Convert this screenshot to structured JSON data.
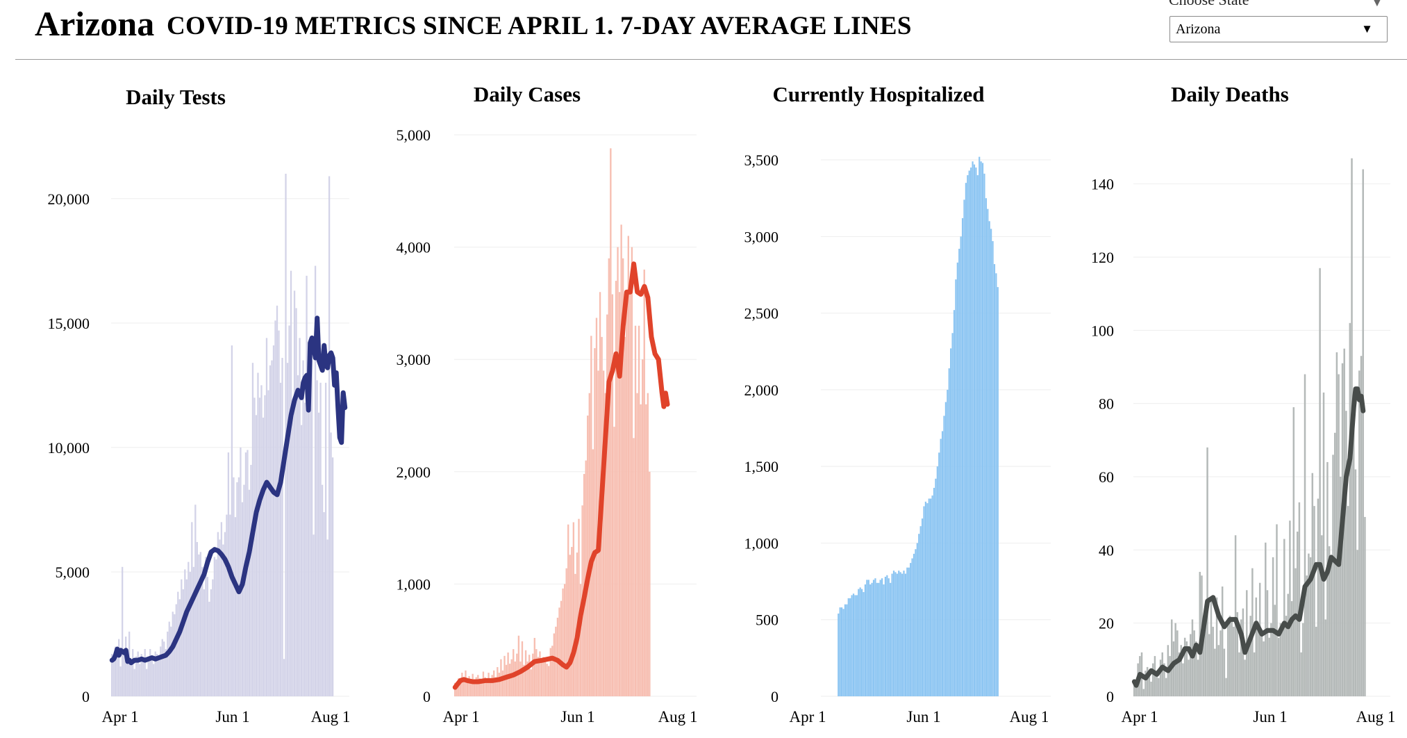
{
  "header": {
    "state": "Arizona",
    "subtitle": "COVID-19 METRICS SINCE APRIL 1. 7-DAY AVERAGE LINES",
    "picker_label": "Choose State",
    "picker_value": "Arizona",
    "picker_caret": "▼",
    "picker_label_caret": "▼"
  },
  "chart_data": [
    {
      "type": "bar",
      "title": "Daily Tests",
      "xlabel": "",
      "ylabel": "",
      "x_tick_labels": [
        "Apr 1",
        "Jun 1",
        "Aug 1"
      ],
      "x_tick_days": [
        0,
        61,
        122
      ],
      "ylim": [
        0,
        21000
      ],
      "y_ticks": [
        0,
        5000,
        10000,
        15000,
        20000
      ],
      "y_tick_labels": [
        "0",
        "5,000",
        "10,000",
        "15,000",
        "20,000"
      ],
      "bar_color": "#d3d3e8",
      "line_color": "#2b3481",
      "bar_series": {
        "name": "Daily tests",
        "start_day": 0,
        "values": [
          1700,
          1500,
          2000,
          1600,
          2300,
          1200,
          5200,
          1800,
          2400,
          1500,
          2600,
          1400,
          1900,
          1100,
          1600,
          1800,
          1300,
          1700,
          1400,
          1900,
          1100,
          1600,
          1900,
          1500,
          1300,
          1800,
          1700,
          1500,
          2000,
          2300,
          2200,
          1900,
          2600,
          3000,
          2800,
          3400,
          3300,
          3700,
          4200,
          3900,
          4700,
          4300,
          5100,
          4700,
          5400,
          5000,
          7000,
          5200,
          7700,
          6200,
          5700,
          5800,
          5200,
          4300,
          5600,
          4800,
          3800,
          4300,
          4700,
          5600,
          5500,
          6600,
          6300,
          7000,
          6100,
          6600,
          7300,
          9800,
          7300,
          14100,
          8800,
          7200,
          8600,
          8800,
          10000,
          7800,
          8500,
          9800,
          9900,
          8300,
          9300,
          13400,
          12000,
          11300,
          13000,
          12000,
          12500,
          11200,
          12100,
          14400,
          12300,
          13300,
          13500,
          14100,
          15100,
          15700,
          14700,
          12600,
          13600,
          1500,
          21000,
          13400,
          14900,
          17100,
          11500,
          16300,
          15600,
          12900,
          14400,
          10900,
          13500,
          11800,
          16900,
          12600,
          11600,
          13500,
          6500,
          17300,
          12700,
          11400,
          12600,
          8500,
          7400,
          12600,
          6300,
          20900,
          10600,
          9600
        ]
      },
      "line_series": {
        "name": "7-day average",
        "start_day": 0,
        "values": [
          1450,
          1500,
          1650,
          1900,
          1650,
          1850,
          1800,
          1750,
          1850,
          1400,
          1450,
          1350,
          1450,
          1450,
          1500,
          1450,
          1500,
          1550,
          1500,
          1550,
          1600,
          1650,
          1800,
          2000,
          2300,
          2600,
          3000,
          3400,
          3700,
          4000,
          4300,
          4600,
          4900,
          5400,
          5800,
          5900,
          5850,
          5700,
          5500,
          5200,
          4800,
          4500,
          4200,
          4500,
          5200,
          5800,
          6600,
          7400,
          7900,
          8300,
          8600,
          8400,
          8200,
          8100,
          8600,
          9500,
          10400,
          11300,
          11900,
          12300,
          12000,
          12600,
          12800,
          12900,
          11500,
          14200,
          14400,
          14000,
          13600,
          15200,
          13500,
          13300,
          13100,
          14100,
          13300,
          13200,
          13700,
          13800,
          13600,
          12500,
          13000,
          11600,
          10400,
          10200,
          12200,
          11600
        ]
      },
      "line_days": [
        0,
        1,
        2,
        3,
        4,
        5,
        6,
        7,
        8,
        9,
        10,
        11,
        13,
        15,
        17,
        19,
        21,
        23,
        25,
        27,
        29,
        31,
        33,
        35,
        37,
        39,
        41,
        43,
        45,
        47,
        49,
        51,
        53,
        55,
        57,
        59,
        61,
        63,
        65,
        67,
        69,
        71,
        73,
        75,
        77,
        79,
        81,
        83,
        85,
        87,
        89,
        91,
        93,
        95,
        97,
        99,
        101,
        103,
        105,
        107,
        109,
        110,
        111,
        112,
        113,
        114,
        115,
        116,
        117,
        118,
        119,
        120,
        121,
        122,
        123,
        124,
        125,
        126,
        127,
        128,
        129,
        130,
        131,
        132,
        133,
        134
      ]
    },
    {
      "type": "bar",
      "title": "Daily Cases",
      "xlabel": "",
      "ylabel": "",
      "x_tick_labels": [
        "Apr 1",
        "Jun 1",
        "Aug 1"
      ],
      "x_tick_days": [
        0,
        61,
        122
      ],
      "ylim": [
        0,
        5000
      ],
      "y_ticks": [
        0,
        1000,
        2000,
        3000,
        4000,
        5000
      ],
      "y_tick_labels": [
        "0",
        "1,000",
        "2,000",
        "3,000",
        "4,000",
        "5,000"
      ],
      "bar_color": "#f7beb1",
      "line_color": "#e0432a",
      "bar_series": {
        "name": "Daily cases",
        "start_day": 0,
        "values": [
          120,
          90,
          160,
          150,
          210,
          170,
          230,
          120,
          180,
          150,
          200,
          140,
          170,
          190,
          160,
          140,
          220,
          170,
          160,
          210,
          150,
          190,
          230,
          170,
          260,
          210,
          330,
          230,
          360,
          280,
          390,
          290,
          330,
          420,
          310,
          380,
          540,
          310,
          490,
          280,
          410,
          310,
          370,
          240,
          380,
          520,
          420,
          350,
          400,
          300,
          350,
          310,
          290,
          270,
          430,
          450,
          560,
          620,
          700,
          790,
          850,
          960,
          1000,
          1140,
          1530,
          1260,
          1330,
          1550,
          1090,
          1280,
          1580,
          1000,
          1700,
          1980,
          2100,
          2500,
          2700,
          3210,
          2200,
          3100,
          3370,
          2900,
          3600,
          3200,
          2900,
          2700,
          3400,
          3900,
          4880,
          3580,
          2400,
          3700,
          4000,
          3600,
          4200,
          3900,
          3200,
          3500,
          4100,
          3700,
          4000,
          2300,
          3300,
          2700,
          3300,
          2600,
          3000,
          3800,
          2600,
          2700,
          2000
        ]
      },
      "line_series": {
        "name": "7-day average",
        "start_day": 0,
        "values": [
          80,
          100,
          140,
          150,
          140,
          130,
          130,
          140,
          140,
          150,
          170,
          190,
          220,
          260,
          310,
          320,
          330,
          340,
          320,
          280,
          260,
          300,
          390,
          520,
          720,
          880,
          1050,
          1200,
          1280,
          1300,
          1800,
          2300,
          2800,
          2900,
          3050,
          2850,
          3300,
          3600,
          3600,
          3850,
          3600,
          3580,
          3650,
          3550,
          3200,
          3050,
          3000,
          2700,
          2580,
          2700,
          2600
        ]
      },
      "line_days": [
        0,
        1,
        3,
        5,
        7,
        10,
        13,
        17,
        21,
        25,
        29,
        33,
        37,
        41,
        45,
        49,
        52,
        55,
        58,
        61,
        63,
        65,
        67,
        69,
        71,
        73,
        75,
        77,
        79,
        81,
        83,
        85,
        87,
        89,
        91,
        93,
        95,
        97,
        99,
        101,
        103,
        105,
        107,
        109,
        111,
        113,
        115,
        117,
        118,
        119,
        120
      ]
    },
    {
      "type": "bar",
      "title": "Currently Hospitalized",
      "xlabel": "",
      "ylabel": "",
      "x_tick_labels": [
        "Apr 1",
        "Jun 1",
        "Aug 1"
      ],
      "x_tick_days": [
        0,
        61,
        122
      ],
      "ylim": [
        0,
        3600
      ],
      "y_ticks": [
        0,
        500,
        1000,
        1500,
        2000,
        2500,
        3000,
        3500
      ],
      "y_tick_labels": [
        "0",
        "500",
        "1,000",
        "1,500",
        "2,000",
        "2,500",
        "3,000",
        "3,500"
      ],
      "bar_color": "#8cc5f2",
      "line_color": null,
      "bar_series": {
        "name": "Currently hospitalized",
        "start_day": 10,
        "values": [
          540,
          580,
          580,
          570,
          600,
          600,
          640,
          640,
          660,
          670,
          660,
          660,
          700,
          710,
          700,
          680,
          730,
          760,
          760,
          730,
          740,
          760,
          770,
          740,
          740,
          760,
          770,
          730,
          780,
          790,
          770,
          740,
          800,
          820,
          810,
          800,
          820,
          810,
          800,
          820,
          800,
          840,
          840,
          870,
          900,
          930,
          960,
          1000,
          1060,
          1110,
          1160,
          1240,
          1270,
          1260,
          1290,
          1290,
          1310,
          1360,
          1420,
          1500,
          1590,
          1680,
          1730,
          1830,
          1920,
          2000,
          2140,
          2270,
          2370,
          2520,
          2720,
          2830,
          2920,
          3000,
          3120,
          3240,
          3350,
          3400,
          3430,
          3450,
          3490,
          3470,
          3450,
          3400,
          3520,
          3490,
          3480,
          3410,
          3250,
          3180,
          3100,
          3050,
          2970,
          2820,
          2760,
          2670
        ]
      }
    },
    {
      "type": "bar",
      "title": "Daily Deaths",
      "xlabel": "",
      "ylabel": "",
      "x_tick_labels": [
        "Apr 1",
        "Jun 1",
        "Aug 1"
      ],
      "x_tick_days": [
        0,
        61,
        122
      ],
      "ylim": [
        0,
        150
      ],
      "y_ticks": [
        0,
        20,
        40,
        60,
        80,
        100,
        120,
        140
      ],
      "y_tick_labels": [
        "0",
        "20",
        "40",
        "60",
        "80",
        "100",
        "120",
        "140"
      ],
      "bar_color": "#b4b9b8",
      "line_color": "#474c4a",
      "bar_series": {
        "name": "Daily deaths",
        "start_day": 0,
        "values": [
          4,
          3,
          9,
          11,
          12,
          2,
          7,
          8,
          6,
          4,
          9,
          11,
          7,
          5,
          10,
          12,
          9,
          5,
          14,
          11,
          21,
          15,
          20,
          18,
          12,
          14,
          9,
          16,
          15,
          10,
          17,
          21,
          18,
          15,
          10,
          34,
          33,
          22,
          24,
          68,
          17,
          27,
          19,
          13,
          27,
          14,
          18,
          30,
          13,
          5,
          20,
          22,
          21,
          19,
          44,
          23,
          12,
          21,
          24,
          10,
          29,
          14,
          22,
          35,
          12,
          27,
          18,
          31,
          17,
          15,
          42,
          29,
          16,
          20,
          38,
          25,
          47,
          16,
          20,
          19,
          43,
          22,
          28,
          48,
          26,
          79,
          35,
          45,
          53,
          12,
          20,
          88,
          33,
          39,
          38,
          61,
          52,
          19,
          54,
          117,
          44,
          83,
          21,
          64,
          41,
          36,
          66,
          72,
          94,
          88,
          60,
          91,
          95,
          78,
          52,
          102,
          147,
          75,
          62,
          40,
          89,
          93,
          144,
          49
        ]
      },
      "line_series": {
        "name": "7-day average",
        "start_day": 0,
        "values": [
          4,
          3,
          6,
          5,
          7,
          6,
          8,
          7,
          9,
          10,
          13,
          13,
          11,
          14,
          12,
          19,
          26,
          27,
          22,
          19,
          21,
          21,
          17,
          12,
          16,
          20,
          17,
          18,
          18,
          17,
          20,
          19,
          21,
          22,
          21,
          30,
          32,
          36,
          36,
          32,
          34,
          38,
          37,
          36,
          48,
          60,
          65,
          79,
          84,
          84,
          81,
          82,
          78
        ]
      },
      "line_days": [
        0,
        1,
        3,
        6,
        9,
        12,
        15,
        18,
        21,
        24,
        27,
        29,
        31,
        33,
        35,
        37,
        39,
        42,
        45,
        48,
        51,
        54,
        57,
        59,
        62,
        65,
        68,
        71,
        74,
        77,
        80,
        82,
        84,
        86,
        88,
        91,
        94,
        97,
        99,
        101,
        103,
        105,
        107,
        109,
        111,
        113,
        115,
        117,
        118,
        119,
        120,
        121,
        122
      ]
    }
  ]
}
